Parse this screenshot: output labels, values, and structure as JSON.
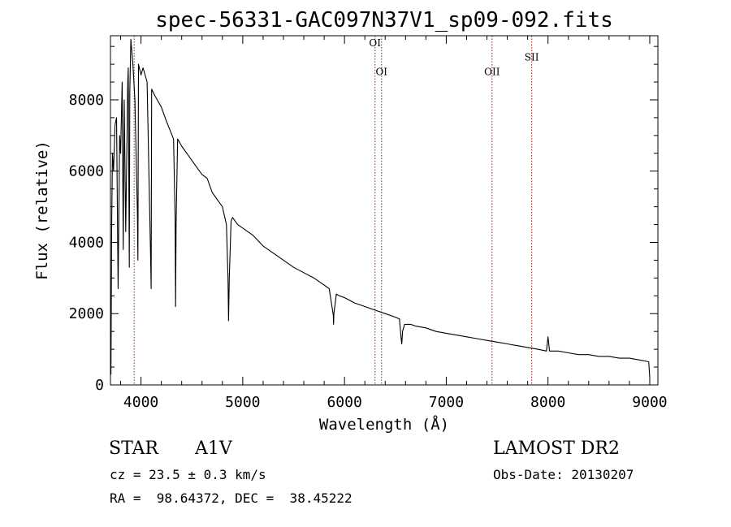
{
  "chart_data": {
    "type": "line",
    "title": "spec-56331-GAC097N37V1_sp09-092.fits",
    "xlabel": "Wavelength (Å)",
    "ylabel": "Flux (relative)",
    "xlim": [
      3700,
      9080
    ],
    "ylim": [
      0,
      9800
    ],
    "xticks": [
      4000,
      5000,
      6000,
      7000,
      8000,
      9000
    ],
    "yticks": [
      0,
      2000,
      4000,
      6000,
      8000
    ],
    "xtick_labels": [
      "4000",
      "5000",
      "6000",
      "7000",
      "8000",
      "9000"
    ],
    "ytick_labels": [
      "0",
      "2000",
      "4000",
      "6000",
      "8000"
    ],
    "grid": false,
    "series": [
      {
        "x": [
          3700,
          3705,
          3712,
          3720,
          3730,
          3745,
          3760,
          3775,
          3790,
          3800,
          3815,
          3825,
          3835,
          3850,
          3870,
          3875,
          3885,
          3890,
          3900,
          3920,
          3940,
          3965,
          3970,
          3975,
          4000,
          4020,
          4060,
          4095,
          4100,
          4105,
          4140,
          4200,
          4250,
          4320,
          4335,
          4340,
          4345,
          4360,
          4400,
          4450,
          4500,
          4550,
          4600,
          4650,
          4700,
          4750,
          4800,
          4840,
          4855,
          4861,
          4868,
          4885,
          4900,
          4950,
          5000,
          5100,
          5200,
          5300,
          5400,
          5500,
          5600,
          5700,
          5800,
          5850,
          5890,
          5893,
          5896,
          5920,
          5950,
          6000,
          6100,
          6200,
          6300,
          6400,
          6500,
          6540,
          6557,
          6563,
          6570,
          6590,
          6650,
          6700,
          6800,
          6900,
          7000,
          7100,
          7200,
          7300,
          7400,
          7500,
          7600,
          7700,
          7800,
          7900,
          7985,
          8000,
          8015,
          8100,
          8200,
          8300,
          8400,
          8500,
          8600,
          8700,
          8800,
          8900,
          8990,
          9000
        ],
        "y": [
          1500,
          300,
          4500,
          6500,
          6000,
          7300,
          7500,
          2700,
          7000,
          6500,
          8500,
          3800,
          8000,
          4300,
          8500,
          8900,
          3300,
          8200,
          9700,
          9000,
          8000,
          4800,
          3500,
          9000,
          8700,
          8900,
          8500,
          3500,
          2700,
          8300,
          8100,
          7800,
          7400,
          6900,
          4700,
          2200,
          4500,
          6900,
          6700,
          6500,
          6300,
          6100,
          5900,
          5800,
          5400,
          5200,
          5000,
          4500,
          3000,
          1800,
          3000,
          4600,
          4700,
          4500,
          4400,
          4200,
          3900,
          3700,
          3500,
          3300,
          3150,
          3000,
          2800,
          2700,
          1950,
          1700,
          2000,
          2550,
          2500,
          2450,
          2300,
          2200,
          2100,
          2000,
          1900,
          1850,
          1300,
          1150,
          1500,
          1700,
          1700,
          1650,
          1600,
          1500,
          1450,
          1400,
          1350,
          1300,
          1250,
          1200,
          1150,
          1100,
          1050,
          1000,
          950,
          1350,
          950,
          950,
          900,
          850,
          850,
          800,
          800,
          750,
          750,
          700,
          650,
          200
        ]
      }
    ],
    "line_markers": [
      {
        "label": "OI",
        "x": 6300,
        "label_level": 9500
      },
      {
        "label": "OI",
        "x": 6364,
        "label_level": 8700
      },
      {
        "label": "OII",
        "x": 7450,
        "label_level": 8700
      },
      {
        "label": "SII",
        "x": 7840,
        "label_level": 9100
      },
      {
        "label": "",
        "x": 3933,
        "label_level": null
      }
    ]
  },
  "info": {
    "class_label": "STAR",
    "subclass_label": "A1V",
    "survey_label": "LAMOST DR2",
    "cz_text": "cz = 23.5 ± 0.3 km/s",
    "obs_date_text": "Obs-Date: 20130207",
    "coords_text": "RA =  98.64372, DEC =  38.45222"
  },
  "colors": {
    "spectrum": "#000000",
    "marker_lines": "#a01818",
    "background": "#ffffff"
  }
}
